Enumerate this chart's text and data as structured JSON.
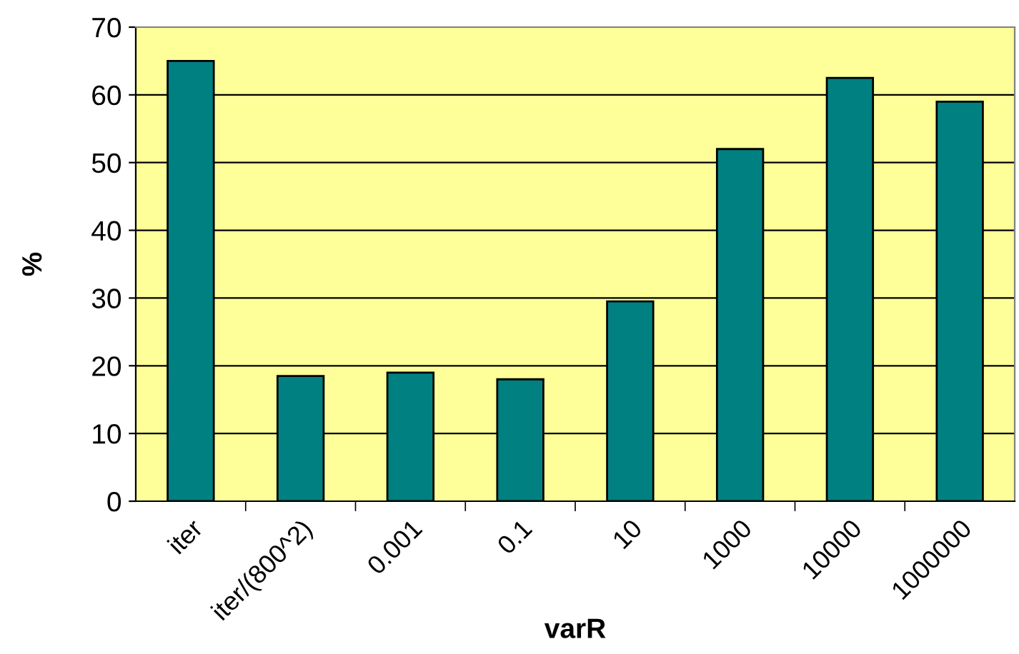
{
  "chart_data": {
    "type": "bar",
    "xlabel": "varR",
    "ylabel": "%",
    "categories": [
      "iter",
      "iter/(800^2)",
      "0.001",
      "0.1",
      "10",
      "1000",
      "10000",
      "1000000"
    ],
    "values": [
      65,
      18.5,
      19,
      18,
      29.5,
      52,
      62.5,
      59
    ],
    "color": "#008080",
    "ylim": [
      0,
      70
    ],
    "yticks": [
      0,
      10,
      20,
      30,
      40,
      50,
      60,
      70
    ],
    "grid": "y",
    "legend": false
  }
}
